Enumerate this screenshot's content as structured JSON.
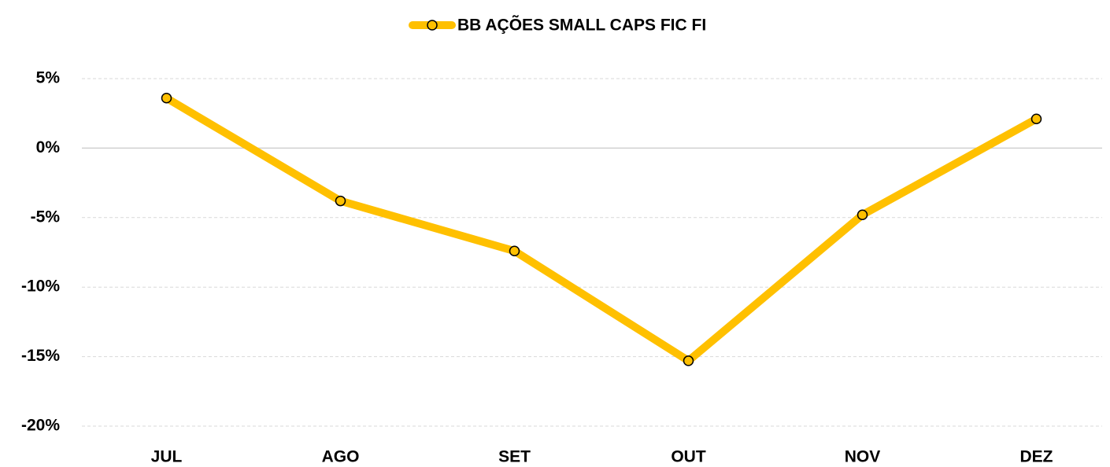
{
  "chart_data": {
    "type": "line",
    "categories": [
      "JUL",
      "AGO",
      "SET",
      "OUT",
      "NOV",
      "DEZ"
    ],
    "series": [
      {
        "name": "BB AÇÕES SMALL CAPS FIC FI",
        "color": "#FFC000",
        "values": [
          3.6,
          -3.8,
          -7.4,
          -15.3,
          -4.8,
          2.1
        ]
      }
    ],
    "ylim": [
      -20,
      5
    ],
    "yticks": [
      {
        "value": -20,
        "label": "-20%"
      },
      {
        "value": -15,
        "label": "-15%"
      },
      {
        "value": -10,
        "label": "-10%"
      },
      {
        "value": -5,
        "label": "-5%"
      },
      {
        "value": 0,
        "label": "0%"
      },
      {
        "value": 5,
        "label": "5%"
      }
    ],
    "grid": true,
    "legend": "top"
  }
}
